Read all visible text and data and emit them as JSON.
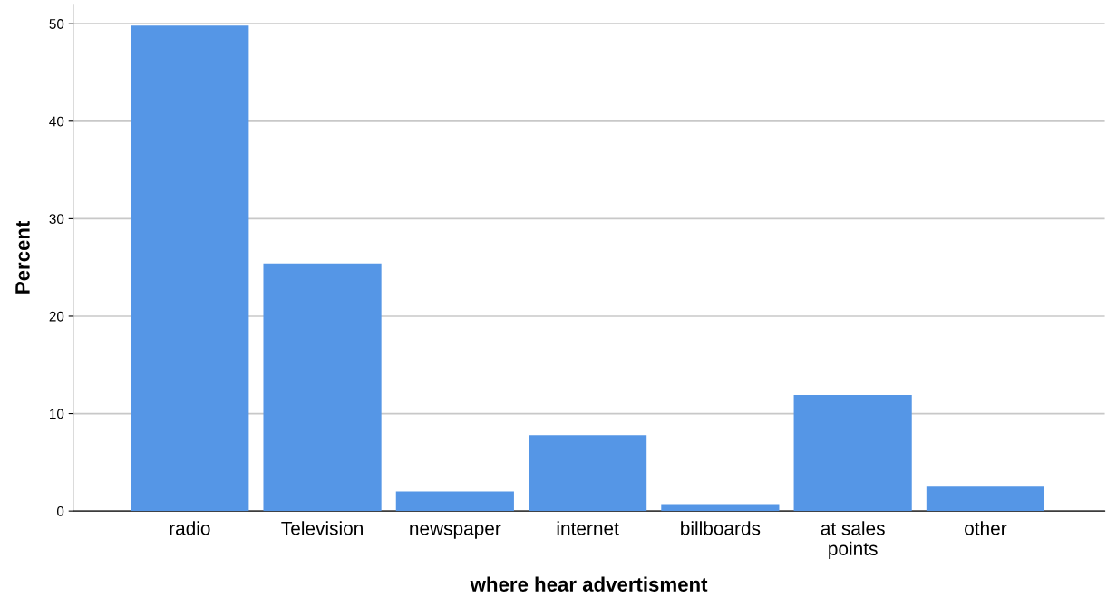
{
  "chart_data": {
    "type": "bar",
    "xlabel": "where hear advertisment",
    "ylabel": "Percent",
    "categories": [
      "radio",
      "Television",
      "newspaper",
      "internet",
      "billboards",
      "at sales\npoints",
      "other"
    ],
    "values": [
      49.8,
      25.4,
      2.0,
      7.8,
      0.7,
      11.9,
      2.6
    ],
    "color": "#5596e6",
    "ylim": [
      0,
      52
    ],
    "yticks": [
      0,
      10,
      20,
      30,
      40,
      50
    ],
    "grid": "y",
    "legend": false
  }
}
